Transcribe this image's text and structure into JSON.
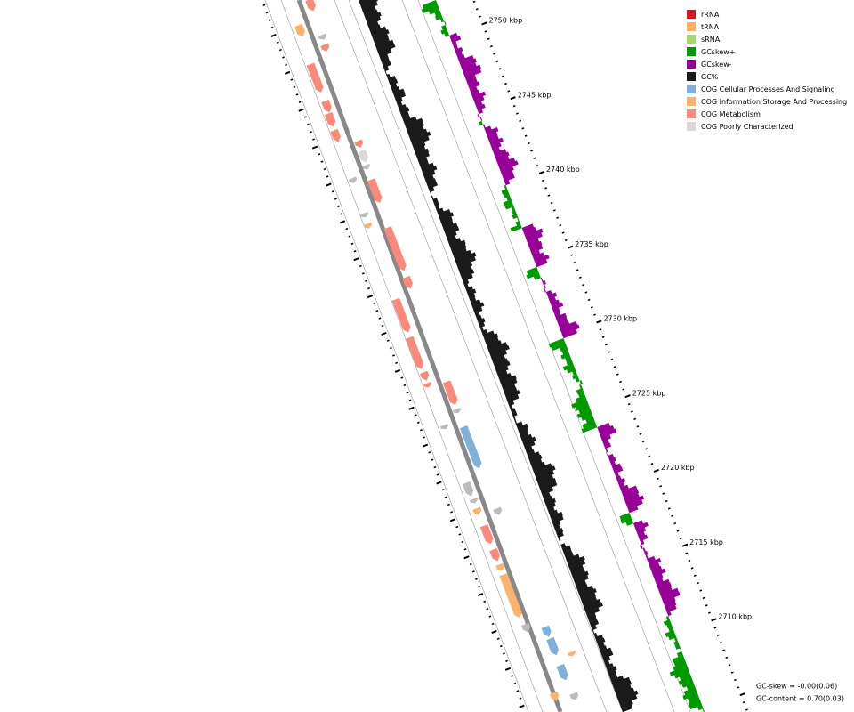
{
  "legend": [
    {
      "label": "rRNA",
      "color": "#d7191c"
    },
    {
      "label": "tRNA",
      "color": "#fdae61"
    },
    {
      "label": "sRNA",
      "color": "#a6d96a"
    },
    {
      "label": "GCskew+",
      "color": "#009900"
    },
    {
      "label": "GCskew-",
      "color": "#990099"
    },
    {
      "label": "GC%",
      "color": "#1a1a1a"
    },
    {
      "label": "COG Cellular Processes And Signaling",
      "color": "#7fb0d8"
    },
    {
      "label": "COG Information Storage And Processing",
      "color": "#fbb36b"
    },
    {
      "label": "COG Metabolism",
      "color": "#f9897a"
    },
    {
      "label": "COG Poorly Characterized",
      "color": "#d9d9d9"
    }
  ],
  "ruler_labels": [
    "2750 kbp",
    "2745 kbp",
    "2740 kbp",
    "2735 kbp",
    "2730 kbp",
    "2725 kbp",
    "2720 kbp",
    "2715 kbp",
    "2710 kbp"
  ],
  "stats": [
    "GC-skew = -0.00(0.06)",
    "GC-content = 0.70(0.03)"
  ]
}
